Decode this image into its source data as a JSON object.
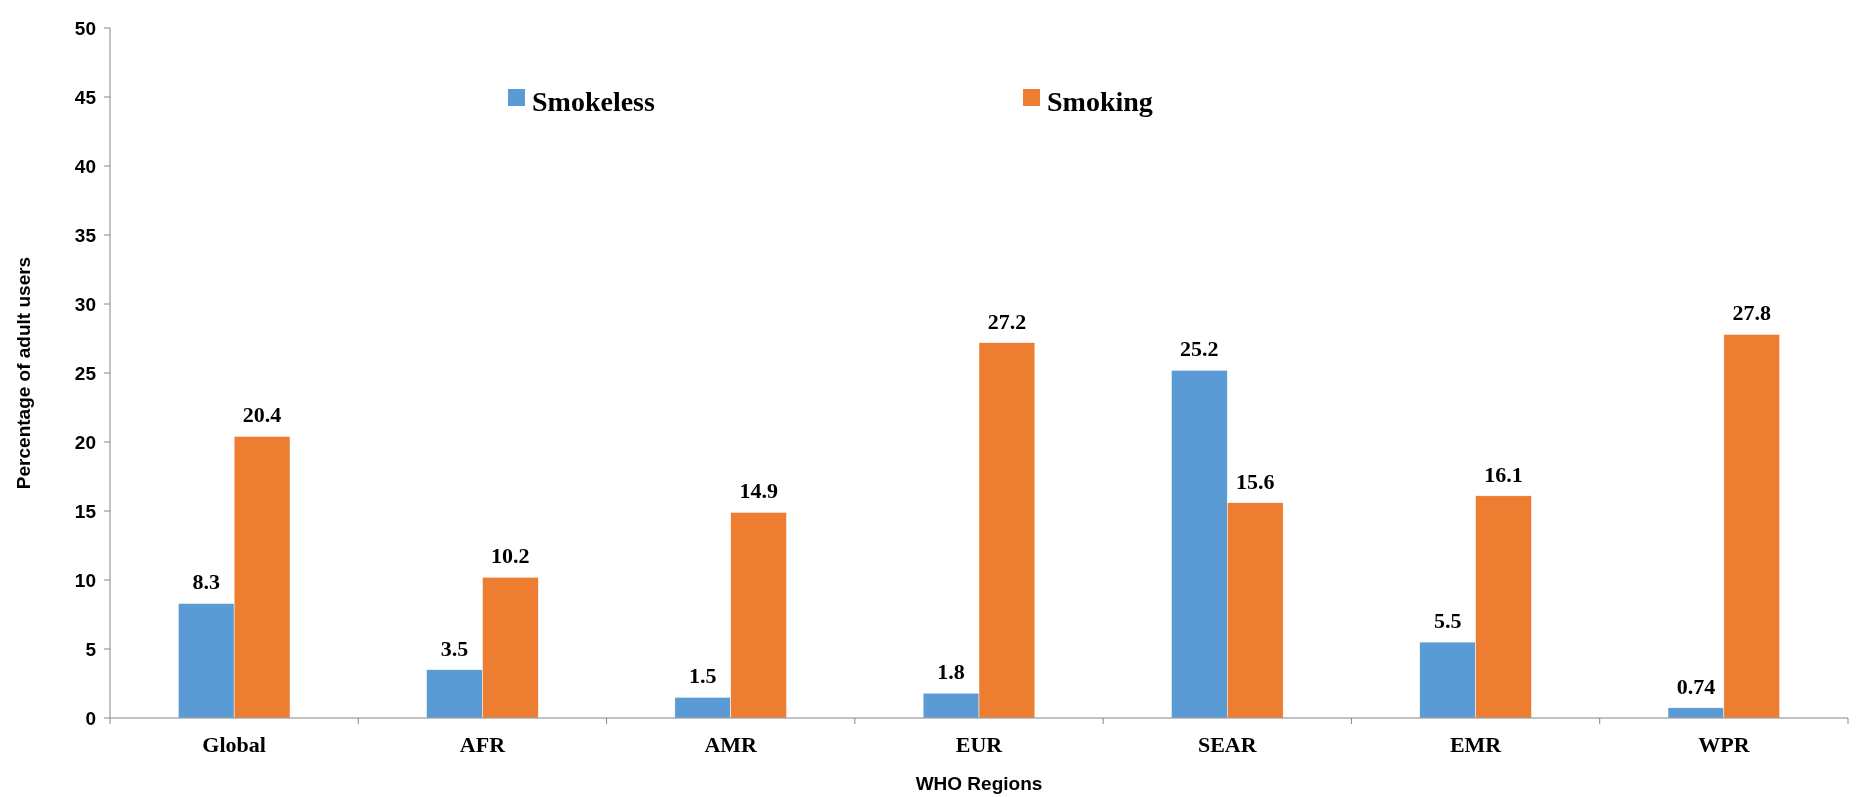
{
  "chart_data": {
    "type": "bar",
    "xlabel": "WHO Regions",
    "ylabel": "Percentage of adult users",
    "categories": [
      "Global",
      "AFR",
      "AMR",
      "EUR",
      "SEAR",
      "EMR",
      "WPR"
    ],
    "series": [
      {
        "name": "Smokeless",
        "color": "#5b9bd5",
        "values": [
          8.3,
          3.5,
          1.5,
          1.8,
          25.2,
          5.5,
          0.74
        ]
      },
      {
        "name": "Smoking",
        "color": "#ed7d31",
        "values": [
          20.4,
          10.2,
          14.9,
          27.2,
          15.6,
          16.1,
          27.8
        ]
      }
    ],
    "ylim": [
      0,
      50
    ],
    "yticks": [
      0,
      5,
      10,
      15,
      20,
      25,
      30,
      35,
      40,
      45,
      50
    ],
    "data_labels": true,
    "grid": false,
    "legend": "top"
  }
}
